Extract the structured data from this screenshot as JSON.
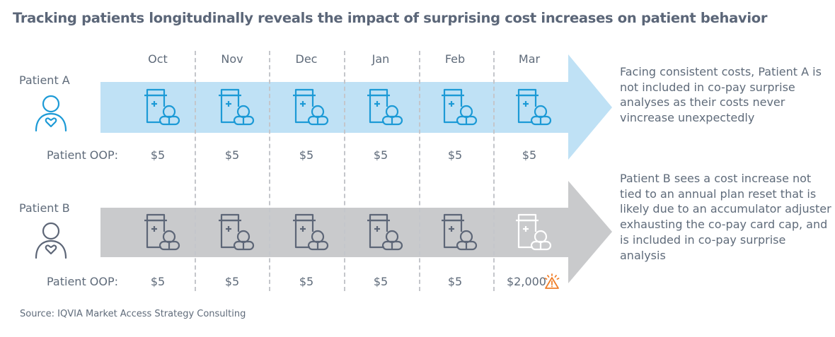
{
  "title": "Tracking patients longitudinally reveals the impact of surprising cost increases on patient behavior",
  "months": [
    "Oct",
    "Nov",
    "Dec",
    "Jan",
    "Feb",
    "Mar"
  ],
  "colors": {
    "arrow_a": "#bfe1f5",
    "arrow_b": "#c9cacc",
    "icon_a": "#1c9ad6",
    "icon_b": "#5d6677",
    "icon_highlight": "#ffffff",
    "warning": "#f07f2a",
    "text": "#5f6b7a"
  },
  "patients": [
    {
      "label": "Patient A",
      "icon": "person-heart-icon",
      "oop_label": "Patient OOP:",
      "oop_values": [
        "$5",
        "$5",
        "$5",
        "$5",
        "$5",
        "$5"
      ],
      "note": "Facing consistent costs, Patient A is not included in co-pay surprise analyses as their costs never vincrease unexpectedly"
    },
    {
      "label": "Patient B",
      "icon": "person-heart-icon",
      "oop_label": "Patient OOP:",
      "oop_values": [
        "$5",
        "$5",
        "$5",
        "$5",
        "$5",
        "$2,000"
      ],
      "warning_month": "Mar",
      "warning_icon": "warning-triangle-icon",
      "note": "Patient B sees a cost increase not tied to an annual plan reset that is likely due to an accumulator adjuster exhausting the co-pay card cap, and is included in co-pay surprise analysis"
    }
  ],
  "source": "Source: IQVIA Market Access Strategy Consulting"
}
